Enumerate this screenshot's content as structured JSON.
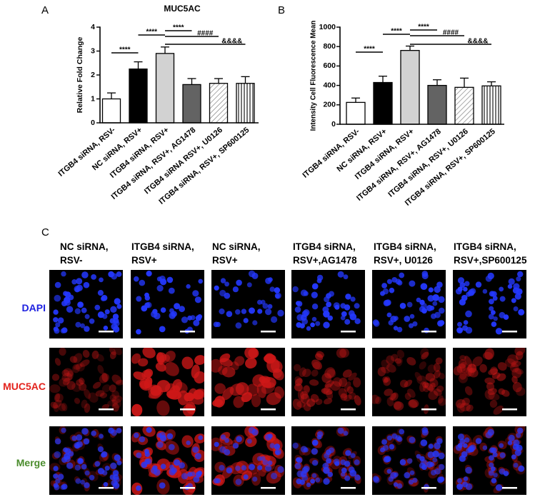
{
  "panel_letters": {
    "a": "A",
    "b": "B",
    "c": "C"
  },
  "chart_data": [
    {
      "type": "bar",
      "title": "MUC5AC",
      "xlabel": "",
      "ylabel": "Relative Fold Change",
      "ylim": [
        0,
        4
      ],
      "yticks": [
        0,
        1,
        2,
        3,
        4
      ],
      "grid": false,
      "categories": [
        "ITGB4 siRNA, RSV-",
        "NC siRNA, RSV+",
        "ITGB4 siRNA, RSV+",
        "ITGB4 siRNA, RSV+, AG1478",
        "ITGB4 siRNA RSV+, U0126",
        "ITGB4 siRNA, RSV+, SP600125"
      ],
      "values": [
        1.0,
        2.25,
        2.9,
        1.6,
        1.65,
        1.65
      ],
      "errors": [
        0.25,
        0.3,
        0.27,
        0.25,
        0.2,
        0.28
      ],
      "fills": [
        "#ffffff",
        "#000000",
        "#d2d2d2",
        "#636363",
        "#ffffff",
        "#ffffff"
      ],
      "annotations": [
        {
          "between": [
            0,
            1
          ],
          "label": "****"
        },
        {
          "between": [
            1,
            2
          ],
          "label": "****"
        },
        {
          "between": [
            2,
            3
          ],
          "label": "****"
        },
        {
          "between": [
            2,
            4
          ],
          "label": "####"
        },
        {
          "between": [
            2,
            5
          ],
          "label": "&&&&"
        }
      ]
    },
    {
      "type": "bar",
      "title": "",
      "xlabel": "",
      "ylabel": "Intensity Cell Fluorescence Mean",
      "ylim": [
        0,
        1000
      ],
      "yticks": [
        0,
        200,
        400,
        600,
        800,
        1000
      ],
      "grid": false,
      "categories": [
        "ITGB4 siRNA, RSV-",
        "NC siRNA, RSV+",
        "ITGB4 siRNA, RSV+",
        "ITGB4 siRNA, RSV+, AG1478",
        "ITGB4 siRNA, RSV+, U0126",
        "ITGB4 siRNA, RSV+, SP600125"
      ],
      "values": [
        225,
        430,
        760,
        400,
        380,
        395
      ],
      "errors": [
        45,
        65,
        45,
        58,
        95,
        42
      ],
      "fills": [
        "#ffffff",
        "#000000",
        "#d2d2d2",
        "#636363",
        "#ffffff",
        "#ffffff"
      ],
      "annotations": [
        {
          "between": [
            0,
            1
          ],
          "label": "****"
        },
        {
          "between": [
            1,
            2
          ],
          "label": "****"
        },
        {
          "between": [
            2,
            3
          ],
          "label": "****"
        },
        {
          "between": [
            2,
            4
          ],
          "label": "####"
        },
        {
          "between": [
            2,
            5
          ],
          "label": "&&&&"
        }
      ]
    }
  ],
  "microscopy": {
    "columns": [
      {
        "line1": "NC siRNA,",
        "line2": "RSV-"
      },
      {
        "line1": "ITGB4 siRNA,",
        "line2": "RSV+"
      },
      {
        "line1": "NC siRNA,",
        "line2": "RSV+"
      },
      {
        "line1": "ITGB4 siRNA,",
        "line2": "RSV+,AG1478"
      },
      {
        "line1": "ITGB4 siRNA,",
        "line2": "RSV+, U0126"
      },
      {
        "line1": "ITGB4 siRNA,",
        "line2": "RSV+,SP600125"
      }
    ],
    "rows": [
      {
        "label": "DAPI",
        "color": "#1f22e0"
      },
      {
        "label": "MUC5AC",
        "color": "#e3221c"
      },
      {
        "label": "Merge",
        "color": "#4a8c2c"
      }
    ]
  }
}
